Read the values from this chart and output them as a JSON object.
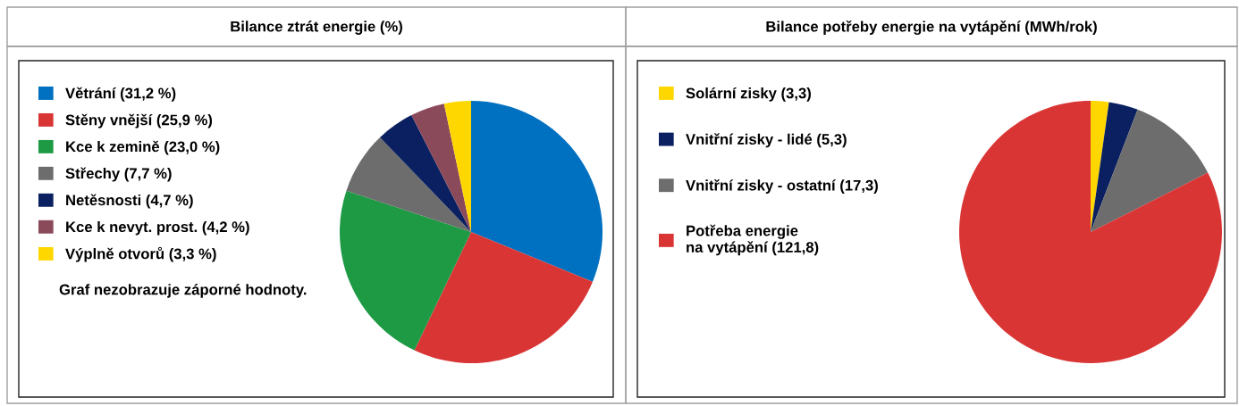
{
  "chart_data": [
    {
      "type": "pie",
      "title": "Bilance ztrát energie (%)",
      "legend": "left",
      "categories": [
        "Větrání (31,2 %)",
        "Stěny vnější (25,9 %)",
        "Kce k zemině (23,0 %)",
        "Střechy (7,7 %)",
        "Netěsnosti (4,7 %)",
        "Kce k nevyt. prost. (4,2 %)",
        "Výplně otvorů (3,3 %)"
      ],
      "values": [
        31.2,
        25.9,
        23.0,
        7.7,
        4.7,
        4.2,
        3.3
      ],
      "colors": [
        "#0070c0",
        "#d93535",
        "#1e9a45",
        "#6d6d6d",
        "#0a2060",
        "#8b4a5a",
        "#ffd700"
      ],
      "annotations": [
        "Graf nezobrazuje záporné hodnoty."
      ]
    },
    {
      "type": "pie",
      "title": "Bilance potřeby energie na vytápění (MWh/rok)",
      "legend": "left",
      "categories": [
        "Solární zisky (3,3)",
        "Vnitřní zisky - lidé (5,3)",
        "Vnitřní zisky - ostatní (17,3)",
        "Potřeba energie\nna vytápění (121,8)"
      ],
      "values": [
        3.3,
        5.3,
        17.3,
        121.8
      ],
      "colors": [
        "#ffd700",
        "#0a2060",
        "#6d6d6d",
        "#d93535"
      ]
    }
  ]
}
